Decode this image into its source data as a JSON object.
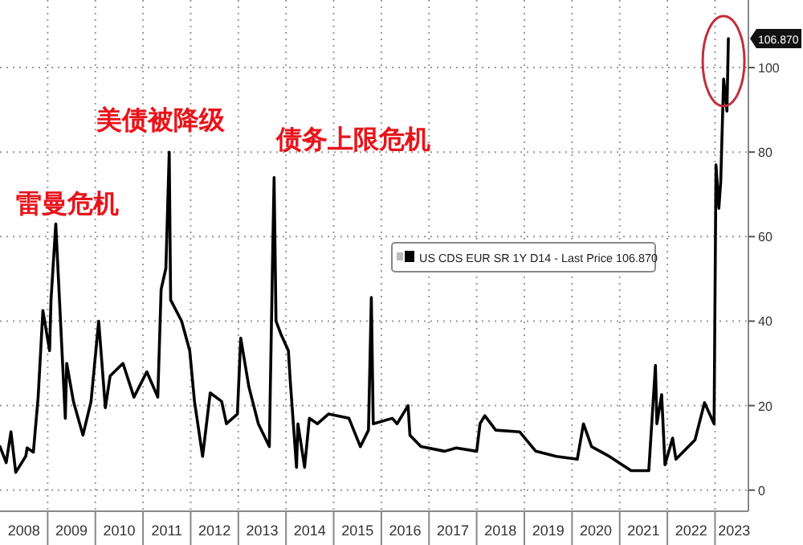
{
  "chart_data": {
    "type": "line",
    "xlim": [
      2008.0,
      2023.7
    ],
    "ylim": [
      -5,
      116
    ],
    "xticks": [
      {
        "value": 2008.5,
        "label": "2008"
      },
      {
        "value": 2009,
        "label": null
      },
      {
        "value": 2009.5,
        "label": "2009"
      },
      {
        "value": 2010,
        "label": null
      },
      {
        "value": 2010.5,
        "label": "2010"
      },
      {
        "value": 2011,
        "label": null
      },
      {
        "value": 2011.5,
        "label": "2011"
      },
      {
        "value": 2012,
        "label": null
      },
      {
        "value": 2012.5,
        "label": "2012"
      },
      {
        "value": 2013,
        "label": null
      },
      {
        "value": 2013.5,
        "label": "2013"
      },
      {
        "value": 2014,
        "label": null
      },
      {
        "value": 2014.5,
        "label": "2014"
      },
      {
        "value": 2015,
        "label": null
      },
      {
        "value": 2015.5,
        "label": "2015"
      },
      {
        "value": 2016,
        "label": null
      },
      {
        "value": 2016.5,
        "label": "2016"
      },
      {
        "value": 2017,
        "label": null
      },
      {
        "value": 2017.5,
        "label": "2017"
      },
      {
        "value": 2018,
        "label": null
      },
      {
        "value": 2018.5,
        "label": "2018"
      },
      {
        "value": 2019,
        "label": null
      },
      {
        "value": 2019.5,
        "label": "2019"
      },
      {
        "value": 2020,
        "label": null
      },
      {
        "value": 2020.5,
        "label": "2020"
      },
      {
        "value": 2021,
        "label": null
      },
      {
        "value": 2021.5,
        "label": "2021"
      },
      {
        "value": 2022,
        "label": null
      },
      {
        "value": 2022.5,
        "label": "2022"
      },
      {
        "value": 2023,
        "label": null
      },
      {
        "value": 2023.4,
        "label": "2023"
      }
    ],
    "yticks": [
      0,
      20,
      40,
      60,
      80,
      100
    ],
    "grid": true,
    "legend": "center right",
    "line_style": "solid",
    "annotations": [
      "雷曼危机",
      "美债被降级",
      "债务上限危机",
      {
        "text": "106.870",
        "y": 106.87
      }
    ],
    "series": [
      {
        "name": "US CDS EUR SR 1Y D14 - Last Price 106.870",
        "color": "#000000",
        "x": [
          2008.0,
          2008.13,
          2008.23,
          2008.33,
          2008.54,
          2008.57,
          2008.7,
          2008.8,
          2008.9,
          2009.04,
          2009.07,
          2009.17,
          2009.2,
          2009.37,
          2009.4,
          2009.54,
          2009.74,
          2009.91,
          2010.07,
          2010.21,
          2010.31,
          2010.58,
          2010.81,
          2011.08,
          2011.31,
          2011.38,
          2011.48,
          2011.55,
          2011.58,
          2011.81,
          2011.98,
          2012.08,
          2012.25,
          2012.41,
          2012.65,
          2012.75,
          2012.98,
          2013.05,
          2013.22,
          2013.42,
          2013.65,
          2013.72,
          2013.75,
          2013.79,
          2013.89,
          2014.05,
          2014.09,
          2014.22,
          2014.25,
          2014.39,
          2014.49,
          2014.66,
          2014.89,
          2015.32,
          2015.56,
          2015.73,
          2015.79,
          2015.83,
          2016.23,
          2016.33,
          2016.56,
          2016.6,
          2016.83,
          2017.33,
          2017.57,
          2018.0,
          2018.07,
          2018.17,
          2018.4,
          2018.9,
          2019.24,
          2019.67,
          2020.11,
          2020.24,
          2020.41,
          2020.78,
          2021.24,
          2021.61,
          2021.75,
          2021.78,
          2021.88,
          2021.95,
          2022.11,
          2022.18,
          2022.58,
          2022.78,
          2022.98,
          2023.02,
          2023.08,
          2023.12,
          2023.18,
          2023.25,
          2023.28
        ],
        "values": [
          10.3,
          6.5,
          13.8,
          4.2,
          8,
          10,
          9,
          22,
          42.5,
          33,
          45,
          63,
          56,
          17,
          30,
          21,
          13,
          21,
          40,
          19.5,
          27,
          30,
          22,
          28,
          22,
          47.5,
          52.5,
          80,
          45,
          40,
          33,
          21,
          8,
          23,
          21,
          15.7,
          18,
          36,
          24.5,
          15.7,
          10.3,
          56,
          74,
          40,
          37,
          33,
          25.7,
          5.4,
          15.7,
          5.4,
          17,
          15.7,
          18,
          17,
          10.3,
          14.2,
          45.6,
          15.7,
          17,
          15.7,
          20,
          13,
          10.3,
          9.2,
          10,
          9.2,
          15.7,
          17.6,
          14.2,
          13.8,
          9.2,
          8,
          7.3,
          15.7,
          10.3,
          8,
          4.6,
          4.6,
          29.5,
          15.7,
          22.6,
          6,
          12.3,
          7.3,
          11.9,
          20.7,
          15.7,
          77,
          66.7,
          73,
          97.3,
          89.7,
          106.87
        ]
      }
    ]
  }
}
